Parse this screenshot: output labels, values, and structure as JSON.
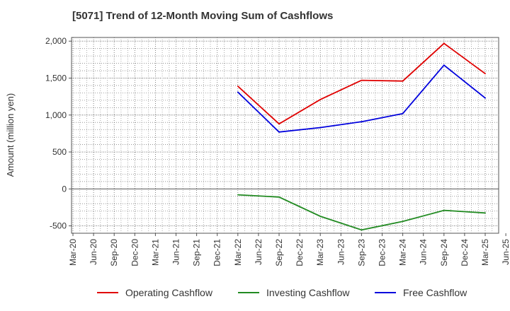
{
  "chart_data": {
    "type": "line",
    "title": "[5071]  Trend of 12-Month Moving Sum of Cashflows",
    "ylabel": "Amount (million yen)",
    "xlabel": "",
    "ylim": [
      -600,
      2050
    ],
    "yticks": [
      2000,
      1500,
      1000,
      500,
      0,
      -500
    ],
    "ytick_labels": [
      "2,000",
      "1,500",
      "1,000",
      "500",
      "0",
      "-500"
    ],
    "categories": [
      "Mar-20",
      "Jun-20",
      "Sep-20",
      "Dec-20",
      "Mar-21",
      "Jun-21",
      "Sep-21",
      "Dec-21",
      "Mar-22",
      "Jun-22",
      "Sep-22",
      "Dec-22",
      "Mar-23",
      "Jun-23",
      "Sep-23",
      "Dec-23",
      "Mar-24",
      "Jun-24",
      "Sep-24",
      "Dec-24",
      "Mar-25",
      "Jun-25"
    ],
    "grid": true,
    "legend_position": "bottom",
    "series": [
      {
        "name": "Operating Cashflow",
        "color": "#e00000",
        "points": [
          [
            "Mar-22",
            1390
          ],
          [
            "Sep-22",
            880
          ],
          [
            "Mar-23",
            1210
          ],
          [
            "Sep-23",
            1470
          ],
          [
            "Mar-24",
            1460
          ],
          [
            "Sep-24",
            1970
          ],
          [
            "Mar-25",
            1560
          ]
        ]
      },
      {
        "name": "Investing Cashflow",
        "color": "#228b22",
        "points": [
          [
            "Mar-22",
            -80
          ],
          [
            "Sep-22",
            -110
          ],
          [
            "Mar-23",
            -370
          ],
          [
            "Sep-23",
            -555
          ],
          [
            "Mar-24",
            -440
          ],
          [
            "Sep-24",
            -290
          ],
          [
            "Mar-25",
            -325
          ]
        ]
      },
      {
        "name": "Free Cashflow",
        "color": "#0000dd",
        "points": [
          [
            "Mar-22",
            1310
          ],
          [
            "Sep-22",
            770
          ],
          [
            "Mar-23",
            830
          ],
          [
            "Sep-23",
            910
          ],
          [
            "Mar-24",
            1020
          ],
          [
            "Sep-24",
            1675
          ],
          [
            "Mar-25",
            1230
          ]
        ]
      }
    ]
  }
}
